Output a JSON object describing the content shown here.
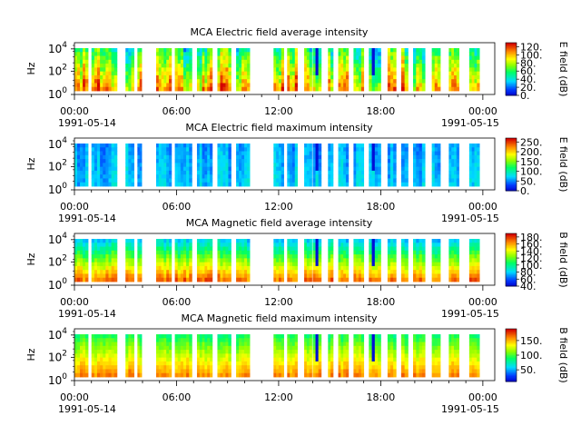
{
  "chart_data": [
    {
      "type": "heatmap",
      "title": "MCA  Electric field average intensity",
      "ylabel": "Hz",
      "cbar_label": "E field (dB)",
      "cbar_ticks": [
        "0.",
        "20.",
        "40.",
        "60.",
        "80.",
        "100.",
        "120."
      ],
      "cbar_range": [
        0,
        130
      ],
      "profile": "avg"
    },
    {
      "type": "heatmap",
      "title": "MCA  Electric field maximum intensity",
      "ylabel": "Hz",
      "cbar_label": "E field (dB)",
      "cbar_ticks": [
        "0.",
        "50.",
        "100.",
        "150.",
        "200.",
        "250."
      ],
      "cbar_range": [
        0,
        270
      ],
      "profile": "emax"
    },
    {
      "type": "heatmap",
      "title": "MCA  Magnetic field average intensity",
      "ylabel": "Hz",
      "cbar_label": "B field (dB)",
      "cbar_ticks": [
        "40.",
        "60.",
        "80.",
        "100.",
        "120.",
        "140.",
        "160.",
        "180."
      ],
      "cbar_range": [
        40,
        190
      ],
      "profile": "bavg"
    },
    {
      "type": "heatmap",
      "title": "MCA  Magnetic field maximum intensity",
      "ylabel": "Hz",
      "cbar_label": "B field (dB)",
      "cbar_ticks": [
        "50.",
        "100.",
        "150."
      ],
      "cbar_range": [
        10,
        190
      ],
      "profile": "bmax"
    }
  ],
  "x_ticks": [
    "00:00",
    "06:00",
    "12:00",
    "18:00",
    "00:00"
  ],
  "x_dates": [
    "1991-05-14",
    "1991-05-15"
  ],
  "y_ticks": [
    {
      "base": "10",
      "exp": "0"
    },
    {
      "base": "10",
      "exp": "2"
    },
    {
      "base": "10",
      "exp": "4"
    }
  ],
  "data_segments_hours": [
    [
      0.0,
      0.8
    ],
    [
      1.0,
      2.5
    ],
    [
      3.0,
      3.5
    ],
    [
      3.7,
      3.95
    ],
    [
      4.8,
      5.7
    ],
    [
      5.9,
      6.9
    ],
    [
      7.2,
      8.1
    ],
    [
      8.4,
      9.2
    ],
    [
      9.5,
      10.3
    ],
    [
      11.7,
      12.3
    ],
    [
      12.5,
      13.1
    ],
    [
      13.5,
      13.95
    ],
    [
      14.0,
      14.5
    ],
    [
      14.9,
      15.2
    ],
    [
      15.5,
      16.1
    ],
    [
      16.4,
      17.0
    ],
    [
      17.3,
      18.0
    ],
    [
      18.4,
      18.9
    ],
    [
      19.2,
      19.6
    ],
    [
      19.9,
      20.6
    ],
    [
      21.0,
      21.5
    ],
    [
      22.0,
      22.6
    ],
    [
      23.2,
      23.8
    ]
  ]
}
